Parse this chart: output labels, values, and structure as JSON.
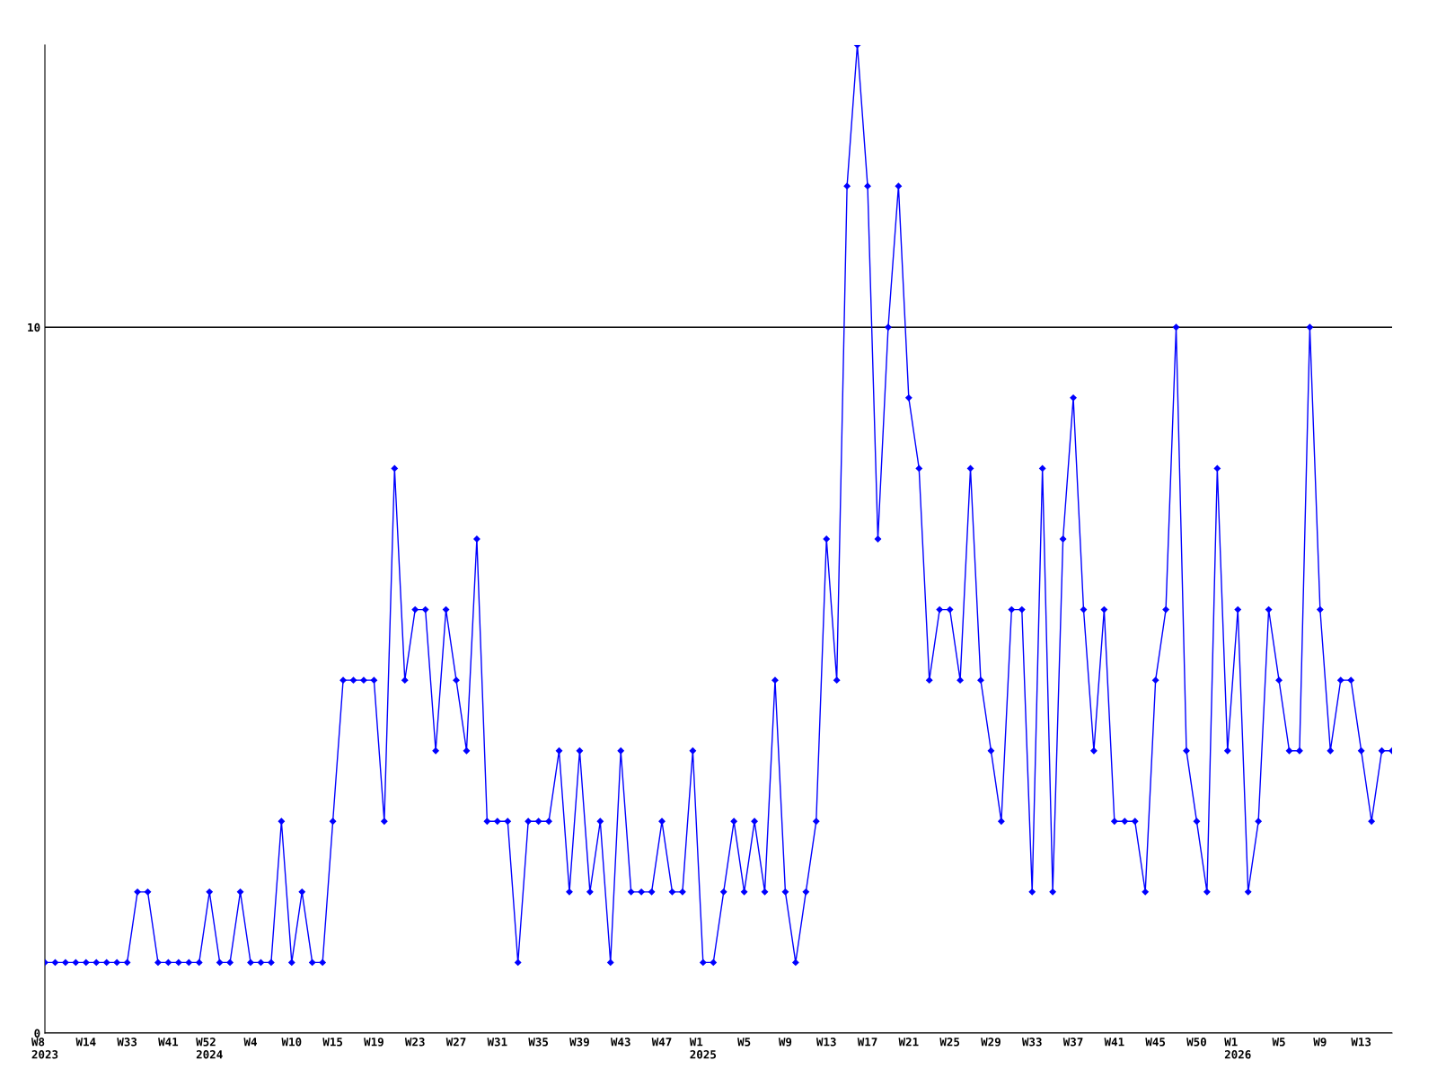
{
  "chart_data": {
    "type": "line",
    "categories": [
      "W8\n2023",
      null,
      null,
      null,
      "W14",
      null,
      null,
      null,
      "W33",
      null,
      null,
      null,
      "W41",
      null,
      null,
      null,
      "W52\n2024",
      null,
      null,
      null,
      "W4",
      null,
      null,
      null,
      "W10",
      null,
      null,
      null,
      "W15",
      null,
      null,
      null,
      "W19",
      null,
      null,
      null,
      "W23",
      null,
      null,
      null,
      "W27",
      null,
      null,
      null,
      "W31",
      null,
      null,
      null,
      "W35",
      null,
      null,
      null,
      "W39",
      null,
      null,
      null,
      "W43",
      null,
      null,
      null,
      "W47",
      null,
      null,
      null,
      "W1\n2025",
      null,
      null,
      null,
      "W5",
      null,
      null,
      null,
      "W9",
      null,
      null,
      null,
      "W13",
      null,
      null,
      null,
      "W17",
      null,
      null,
      null,
      "W21",
      null,
      null,
      null,
      "W25",
      null,
      null,
      null,
      "W29",
      null,
      null,
      null,
      "W33",
      null,
      null,
      null,
      "W37",
      null,
      null,
      null,
      "W41",
      null,
      null,
      null,
      "W45",
      null,
      null,
      null,
      "W50",
      null,
      null,
      null,
      "W1\n2026",
      null,
      null,
      null,
      "W5",
      null,
      null,
      null,
      "W9",
      null,
      null,
      null,
      "W13",
      null,
      null,
      null
    ],
    "series": [
      {
        "color": "#0000ff",
        "values": [
          1,
          1,
          1,
          1,
          1,
          1,
          1,
          1,
          1,
          2,
          2,
          1,
          1,
          1,
          1,
          1,
          2,
          1,
          1,
          2,
          1,
          1,
          1,
          3,
          1,
          2,
          1,
          1,
          3,
          5,
          5,
          5,
          5,
          3,
          8,
          5,
          6,
          6,
          4,
          6,
          5,
          4,
          7,
          3,
          3,
          3,
          1,
          3,
          3,
          3,
          4,
          2,
          4,
          2,
          3,
          1,
          4,
          2,
          2,
          2,
          3,
          2,
          2,
          4,
          1,
          1,
          2,
          3,
          2,
          3,
          2,
          5,
          2,
          1,
          2,
          3,
          7,
          5,
          12,
          14,
          12,
          7,
          10,
          12,
          9,
          8,
          5,
          6,
          6,
          5,
          8,
          5,
          4,
          3,
          6,
          6,
          2,
          8,
          2,
          7,
          9,
          6,
          4,
          6,
          3,
          3,
          3,
          2,
          5,
          6,
          10,
          4,
          3,
          2,
          8,
          4,
          6,
          2,
          3,
          6,
          5,
          4,
          4,
          10,
          6,
          4,
          5,
          5,
          4,
          3,
          4,
          4
        ]
      }
    ],
    "ylim": [
      0,
      14
    ],
    "yticks": [
      0,
      10
    ],
    "grid": "y",
    "marker": "diamond",
    "line_style": "solid",
    "legend": false
  }
}
